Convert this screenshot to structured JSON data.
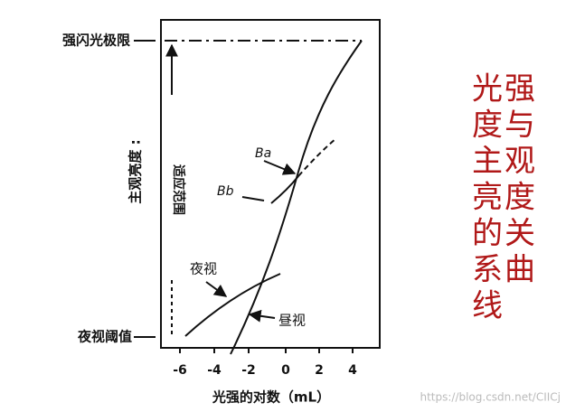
{
  "figure": {
    "left_labels": {
      "top": "强闪光极限",
      "bottom": "夜视阈值"
    },
    "y_axis_label": "主观亮度 :",
    "range_label": "适应范围",
    "curve_labels": {
      "ba": "Ba",
      "bb": "Bb",
      "scotopic": "夜视",
      "photopic": "昼视"
    },
    "x_ticks": [
      "-6",
      "-4",
      "-2",
      "0",
      "2",
      "4"
    ],
    "x_axis_label": "光强的对数（mL）"
  },
  "title_rows": [
    "光强",
    "度与",
    "主观",
    "亮度",
    "的关",
    "系曲",
    "线"
  ],
  "watermark": "https://blog.csdn.net/CIICj"
}
